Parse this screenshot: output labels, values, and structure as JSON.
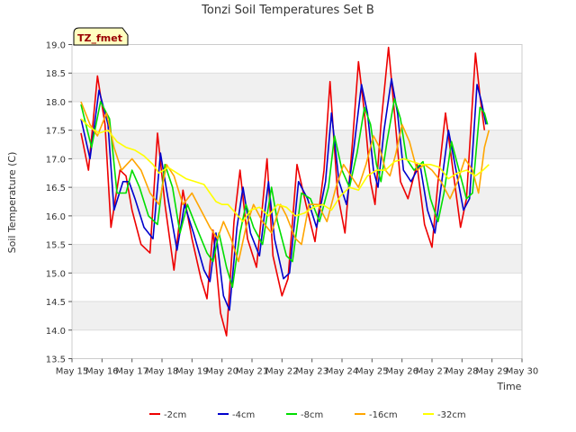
{
  "chart_data": {
    "type": "line",
    "title": "Tonzi Soil Temperatures Set B",
    "xlabel": "Time",
    "ylabel": "Soil Temperature (C)",
    "station_tag": "TZ_fmet",
    "xlim": [
      15,
      30
    ],
    "ylim": [
      13.5,
      19.0
    ],
    "x_ticks": [
      {
        "v": 15,
        "label": "May 15"
      },
      {
        "v": 16,
        "label": "May 16"
      },
      {
        "v": 17,
        "label": "May 17"
      },
      {
        "v": 18,
        "label": "May 18"
      },
      {
        "v": 19,
        "label": "May 19"
      },
      {
        "v": 20,
        "label": "May 20"
      },
      {
        "v": 21,
        "label": "May 21"
      },
      {
        "v": 22,
        "label": "May 22"
      },
      {
        "v": 23,
        "label": "May 23"
      },
      {
        "v": 24,
        "label": "May 24"
      },
      {
        "v": 25,
        "label": "May 25"
      },
      {
        "v": 26,
        "label": "May 26"
      },
      {
        "v": 27,
        "label": "May 27"
      },
      {
        "v": 28,
        "label": "May 28"
      },
      {
        "v": 29,
        "label": "May 29"
      },
      {
        "v": 30,
        "label": "May 30"
      }
    ],
    "y_ticks": [
      "13.5",
      "14.0",
      "14.5",
      "15.0",
      "15.5",
      "16.0",
      "16.5",
      "17.0",
      "17.5",
      "18.0",
      "18.5",
      "19.0"
    ],
    "grid": true,
    "legend_position": "bottom-center",
    "series": [
      {
        "name": "-2cm",
        "color": "#ee0000",
        "points": [
          [
            15.3,
            17.45
          ],
          [
            15.55,
            16.8
          ],
          [
            15.85,
            18.45
          ],
          [
            16.1,
            17.6
          ],
          [
            16.3,
            15.8
          ],
          [
            16.6,
            16.8
          ],
          [
            16.8,
            16.7
          ],
          [
            17.0,
            16.1
          ],
          [
            17.3,
            15.5
          ],
          [
            17.6,
            15.35
          ],
          [
            17.85,
            17.45
          ],
          [
            18.1,
            16.2
          ],
          [
            18.4,
            15.05
          ],
          [
            18.7,
            16.45
          ],
          [
            19.0,
            15.6
          ],
          [
            19.3,
            14.9
          ],
          [
            19.5,
            14.55
          ],
          [
            19.7,
            15.75
          ],
          [
            19.95,
            14.3
          ],
          [
            20.15,
            13.9
          ],
          [
            20.4,
            15.9
          ],
          [
            20.6,
            16.8
          ],
          [
            20.85,
            15.6
          ],
          [
            21.15,
            15.1
          ],
          [
            21.5,
            17.0
          ],
          [
            21.7,
            15.3
          ],
          [
            22.0,
            14.6
          ],
          [
            22.2,
            14.9
          ],
          [
            22.5,
            16.9
          ],
          [
            22.8,
            16.2
          ],
          [
            23.1,
            15.55
          ],
          [
            23.4,
            16.8
          ],
          [
            23.6,
            18.35
          ],
          [
            23.85,
            16.4
          ],
          [
            24.1,
            15.7
          ],
          [
            24.35,
            17.3
          ],
          [
            24.55,
            18.7
          ],
          [
            24.75,
            17.8
          ],
          [
            24.95,
            16.6
          ],
          [
            25.1,
            16.2
          ],
          [
            25.3,
            17.6
          ],
          [
            25.55,
            18.95
          ],
          [
            25.75,
            17.8
          ],
          [
            25.95,
            16.6
          ],
          [
            26.2,
            16.3
          ],
          [
            26.5,
            16.9
          ],
          [
            26.75,
            15.85
          ],
          [
            27.0,
            15.45
          ],
          [
            27.2,
            16.6
          ],
          [
            27.45,
            17.8
          ],
          [
            27.7,
            16.8
          ],
          [
            27.95,
            15.8
          ],
          [
            28.15,
            16.3
          ],
          [
            28.45,
            18.85
          ],
          [
            28.6,
            18.1
          ],
          [
            28.75,
            17.5
          ]
        ]
      },
      {
        "name": "-4cm",
        "color": "#0000cc",
        "points": [
          [
            15.3,
            17.7
          ],
          [
            15.6,
            17.0
          ],
          [
            15.9,
            18.2
          ],
          [
            16.2,
            17.6
          ],
          [
            16.4,
            16.1
          ],
          [
            16.7,
            16.6
          ],
          [
            16.9,
            16.6
          ],
          [
            17.1,
            16.3
          ],
          [
            17.4,
            15.8
          ],
          [
            17.7,
            15.6
          ],
          [
            17.95,
            17.1
          ],
          [
            18.2,
            16.3
          ],
          [
            18.5,
            15.4
          ],
          [
            18.75,
            16.2
          ],
          [
            19.05,
            15.7
          ],
          [
            19.4,
            15.05
          ],
          [
            19.6,
            14.85
          ],
          [
            19.8,
            15.7
          ],
          [
            20.05,
            14.6
          ],
          [
            20.25,
            14.35
          ],
          [
            20.5,
            15.8
          ],
          [
            20.7,
            16.5
          ],
          [
            20.95,
            15.7
          ],
          [
            21.25,
            15.3
          ],
          [
            21.55,
            16.6
          ],
          [
            21.75,
            15.6
          ],
          [
            22.05,
            14.9
          ],
          [
            22.25,
            15.0
          ],
          [
            22.55,
            16.6
          ],
          [
            22.85,
            16.3
          ],
          [
            23.15,
            15.8
          ],
          [
            23.45,
            16.6
          ],
          [
            23.65,
            17.8
          ],
          [
            23.9,
            16.6
          ],
          [
            24.15,
            16.2
          ],
          [
            24.4,
            17.2
          ],
          [
            24.65,
            18.3
          ],
          [
            24.85,
            17.8
          ],
          [
            25.05,
            16.8
          ],
          [
            25.2,
            16.5
          ],
          [
            25.4,
            17.5
          ],
          [
            25.65,
            18.4
          ],
          [
            25.85,
            17.8
          ],
          [
            26.05,
            16.8
          ],
          [
            26.3,
            16.6
          ],
          [
            26.6,
            16.9
          ],
          [
            26.85,
            16.1
          ],
          [
            27.1,
            15.7
          ],
          [
            27.3,
            16.5
          ],
          [
            27.55,
            17.5
          ],
          [
            27.8,
            16.8
          ],
          [
            28.05,
            16.1
          ],
          [
            28.25,
            16.3
          ],
          [
            28.5,
            18.3
          ],
          [
            28.65,
            18.0
          ],
          [
            28.8,
            17.6
          ]
        ]
      },
      {
        "name": "-8cm",
        "color": "#00dd00",
        "points": [
          [
            15.3,
            17.95
          ],
          [
            15.65,
            17.2
          ],
          [
            15.95,
            18.0
          ],
          [
            16.25,
            17.7
          ],
          [
            16.5,
            16.4
          ],
          [
            16.8,
            16.4
          ],
          [
            17.0,
            16.8
          ],
          [
            17.25,
            16.5
          ],
          [
            17.55,
            16.0
          ],
          [
            17.85,
            15.85
          ],
          [
            18.1,
            16.9
          ],
          [
            18.35,
            16.5
          ],
          [
            18.6,
            15.7
          ],
          [
            18.85,
            16.2
          ],
          [
            19.15,
            15.8
          ],
          [
            19.5,
            15.35
          ],
          [
            19.7,
            15.2
          ],
          [
            19.9,
            15.7
          ],
          [
            20.15,
            15.1
          ],
          [
            20.35,
            14.75
          ],
          [
            20.6,
            15.7
          ],
          [
            20.8,
            16.2
          ],
          [
            21.05,
            15.8
          ],
          [
            21.35,
            15.5
          ],
          [
            21.65,
            16.5
          ],
          [
            21.85,
            15.9
          ],
          [
            22.15,
            15.3
          ],
          [
            22.35,
            15.2
          ],
          [
            22.65,
            16.4
          ],
          [
            22.95,
            16.3
          ],
          [
            23.25,
            15.9
          ],
          [
            23.55,
            16.5
          ],
          [
            23.75,
            17.4
          ],
          [
            24.0,
            16.8
          ],
          [
            24.25,
            16.5
          ],
          [
            24.5,
            17.1
          ],
          [
            24.75,
            17.9
          ],
          [
            24.95,
            17.6
          ],
          [
            25.15,
            16.9
          ],
          [
            25.3,
            16.6
          ],
          [
            25.5,
            17.3
          ],
          [
            25.75,
            18.05
          ],
          [
            25.95,
            17.7
          ],
          [
            26.15,
            17.0
          ],
          [
            26.4,
            16.8
          ],
          [
            26.7,
            16.95
          ],
          [
            26.95,
            16.3
          ],
          [
            27.2,
            15.9
          ],
          [
            27.4,
            16.4
          ],
          [
            27.65,
            17.3
          ],
          [
            27.9,
            16.8
          ],
          [
            28.15,
            16.3
          ],
          [
            28.35,
            16.4
          ],
          [
            28.6,
            17.9
          ],
          [
            28.75,
            17.8
          ],
          [
            28.85,
            17.6
          ]
        ]
      },
      {
        "name": "-16cm",
        "color": "#ffa500",
        "points": [
          [
            15.3,
            18.0
          ],
          [
            15.6,
            17.6
          ],
          [
            15.85,
            17.4
          ],
          [
            16.15,
            17.8
          ],
          [
            16.4,
            17.2
          ],
          [
            16.65,
            16.8
          ],
          [
            17.0,
            17.0
          ],
          [
            17.3,
            16.8
          ],
          [
            17.6,
            16.4
          ],
          [
            17.9,
            16.2
          ],
          [
            18.15,
            16.9
          ],
          [
            18.4,
            16.7
          ],
          [
            18.7,
            16.2
          ],
          [
            19.0,
            16.4
          ],
          [
            19.3,
            16.1
          ],
          [
            19.6,
            15.8
          ],
          [
            19.85,
            15.6
          ],
          [
            20.05,
            15.9
          ],
          [
            20.3,
            15.6
          ],
          [
            20.55,
            15.2
          ],
          [
            20.8,
            15.8
          ],
          [
            21.05,
            16.2
          ],
          [
            21.35,
            15.9
          ],
          [
            21.65,
            15.7
          ],
          [
            21.95,
            16.2
          ],
          [
            22.15,
            16.0
          ],
          [
            22.45,
            15.6
          ],
          [
            22.65,
            15.5
          ],
          [
            22.9,
            16.2
          ],
          [
            23.2,
            16.2
          ],
          [
            23.5,
            15.9
          ],
          [
            23.8,
            16.5
          ],
          [
            24.05,
            16.9
          ],
          [
            24.3,
            16.7
          ],
          [
            24.55,
            16.5
          ],
          [
            24.8,
            16.9
          ],
          [
            25.05,
            17.4
          ],
          [
            25.25,
            17.2
          ],
          [
            25.45,
            16.8
          ],
          [
            25.6,
            16.7
          ],
          [
            25.8,
            17.1
          ],
          [
            26.0,
            17.6
          ],
          [
            26.25,
            17.3
          ],
          [
            26.5,
            16.8
          ],
          [
            26.75,
            16.9
          ],
          [
            27.0,
            16.8
          ],
          [
            27.3,
            16.6
          ],
          [
            27.6,
            16.3
          ],
          [
            27.85,
            16.6
          ],
          [
            28.1,
            17.0
          ],
          [
            28.35,
            16.8
          ],
          [
            28.55,
            16.4
          ],
          [
            28.75,
            17.2
          ],
          [
            28.9,
            17.5
          ]
        ]
      },
      {
        "name": "-32cm",
        "color": "#ffff00",
        "points": [
          [
            15.3,
            17.7
          ],
          [
            15.6,
            17.55
          ],
          [
            15.9,
            17.45
          ],
          [
            16.2,
            17.5
          ],
          [
            16.5,
            17.3
          ],
          [
            16.8,
            17.2
          ],
          [
            17.1,
            17.15
          ],
          [
            17.4,
            17.05
          ],
          [
            17.7,
            16.9
          ],
          [
            17.9,
            16.75
          ],
          [
            18.2,
            16.85
          ],
          [
            18.5,
            16.75
          ],
          [
            18.8,
            16.65
          ],
          [
            19.1,
            16.6
          ],
          [
            19.4,
            16.55
          ],
          [
            19.6,
            16.4
          ],
          [
            19.8,
            16.25
          ],
          [
            20.0,
            16.2
          ],
          [
            20.2,
            16.2
          ],
          [
            20.45,
            16.05
          ],
          [
            20.7,
            15.9
          ],
          [
            20.95,
            16.1
          ],
          [
            21.25,
            16.15
          ],
          [
            21.55,
            16.0
          ],
          [
            21.85,
            16.2
          ],
          [
            22.15,
            16.15
          ],
          [
            22.45,
            16.0
          ],
          [
            22.75,
            16.05
          ],
          [
            23.05,
            16.15
          ],
          [
            23.35,
            16.2
          ],
          [
            23.65,
            16.1
          ],
          [
            23.95,
            16.35
          ],
          [
            24.25,
            16.5
          ],
          [
            24.55,
            16.45
          ],
          [
            24.85,
            16.7
          ],
          [
            25.15,
            16.8
          ],
          [
            25.45,
            16.8
          ],
          [
            25.75,
            16.95
          ],
          [
            26.05,
            17.0
          ],
          [
            26.35,
            16.95
          ],
          [
            26.65,
            16.9
          ],
          [
            26.95,
            16.9
          ],
          [
            27.25,
            16.85
          ],
          [
            27.55,
            16.65
          ],
          [
            27.85,
            16.75
          ],
          [
            28.15,
            16.8
          ],
          [
            28.45,
            16.7
          ],
          [
            28.7,
            16.8
          ],
          [
            28.9,
            16.9
          ]
        ]
      }
    ]
  }
}
